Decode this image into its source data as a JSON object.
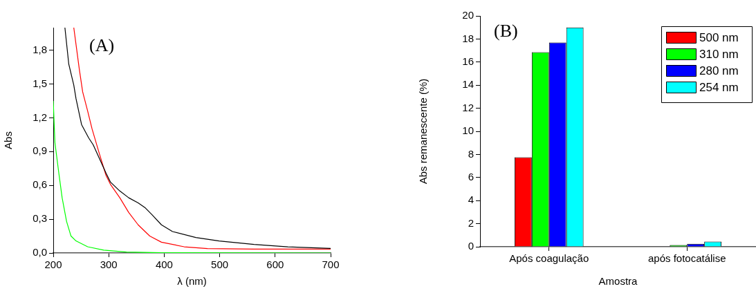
{
  "chart_data": [
    {
      "type": "line",
      "xlabel": "λ (nm)",
      "ylabel": "Abs",
      "annotations": [
        "(A)"
      ],
      "xlim": [
        200,
        700
      ],
      "xticks": [
        200,
        300,
        400,
        500,
        600,
        700
      ],
      "ylim": [
        0,
        2.0
      ],
      "yticks": [
        {
          "value": 0,
          "label": "0,0"
        },
        {
          "value": 0.3,
          "label": "0,3"
        },
        {
          "value": 0.6,
          "label": "0,6"
        },
        {
          "value": 0.9,
          "label": "0,9"
        },
        {
          "value": 1.2,
          "label": "1,2"
        },
        {
          "value": 1.5,
          "label": "1,5"
        },
        {
          "value": 1.8,
          "label": "1,8"
        }
      ],
      "grid": false,
      "legend": false,
      "marker": "none",
      "line_style": "solid",
      "series": [
        {
          "color": "#000000",
          "x": [
            221,
            228,
            237,
            241,
            251,
            264,
            272,
            284,
            295,
            303,
            320,
            336,
            353,
            366,
            378,
            395,
            415,
            457,
            499,
            562,
            623,
            700
          ],
          "values": [
            2.0,
            1.675,
            1.49,
            1.37,
            1.14,
            1.02,
            0.96,
            0.83,
            0.71,
            0.63,
            0.55,
            0.49,
            0.445,
            0.4,
            0.34,
            0.25,
            0.19,
            0.137,
            0.107,
            0.076,
            0.055,
            0.041
          ]
        },
        {
          "color": "#ff0000",
          "x": [
            237,
            247,
            253,
            262,
            270,
            282,
            295,
            303,
            320,
            336,
            353,
            374,
            395,
            436,
            478,
            562,
            700
          ],
          "values": [
            2.0,
            1.63,
            1.43,
            1.26,
            1.1,
            0.9,
            0.69,
            0.61,
            0.49,
            0.36,
            0.25,
            0.15,
            0.096,
            0.055,
            0.039,
            0.035,
            0.035
          ]
        },
        {
          "color": "#00ff00",
          "x": [
            200,
            203,
            210,
            216,
            224,
            232,
            241,
            262,
            291,
            332,
            395,
            700
          ],
          "values": [
            1.35,
            0.98,
            0.71,
            0.49,
            0.28,
            0.15,
            0.107,
            0.055,
            0.025,
            0.008,
            0.002,
            0
          ]
        }
      ]
    },
    {
      "type": "bar",
      "xlabel": "Amostra",
      "ylabel": "Abs remanescente (%)",
      "annotations": [
        "(B)"
      ],
      "categories": [
        "Após coagulação",
        "após fotocatálise"
      ],
      "ylim": [
        0,
        20
      ],
      "yticks": [
        0,
        2,
        4,
        6,
        8,
        10,
        12,
        14,
        16,
        18,
        20
      ],
      "grid": false,
      "legend": "top right",
      "series": [
        {
          "name": "500 nm",
          "color": "#ff0000",
          "values": [
            7.75,
            0
          ]
        },
        {
          "name": "310 nm",
          "color": "#00ff00",
          "values": [
            16.85,
            0.15
          ]
        },
        {
          "name": "280 nm",
          "color": "#0000ff",
          "values": [
            17.7,
            0.25
          ]
        },
        {
          "name": "254 nm",
          "color": "#00ffff",
          "values": [
            19.0,
            0.45
          ]
        }
      ]
    }
  ]
}
